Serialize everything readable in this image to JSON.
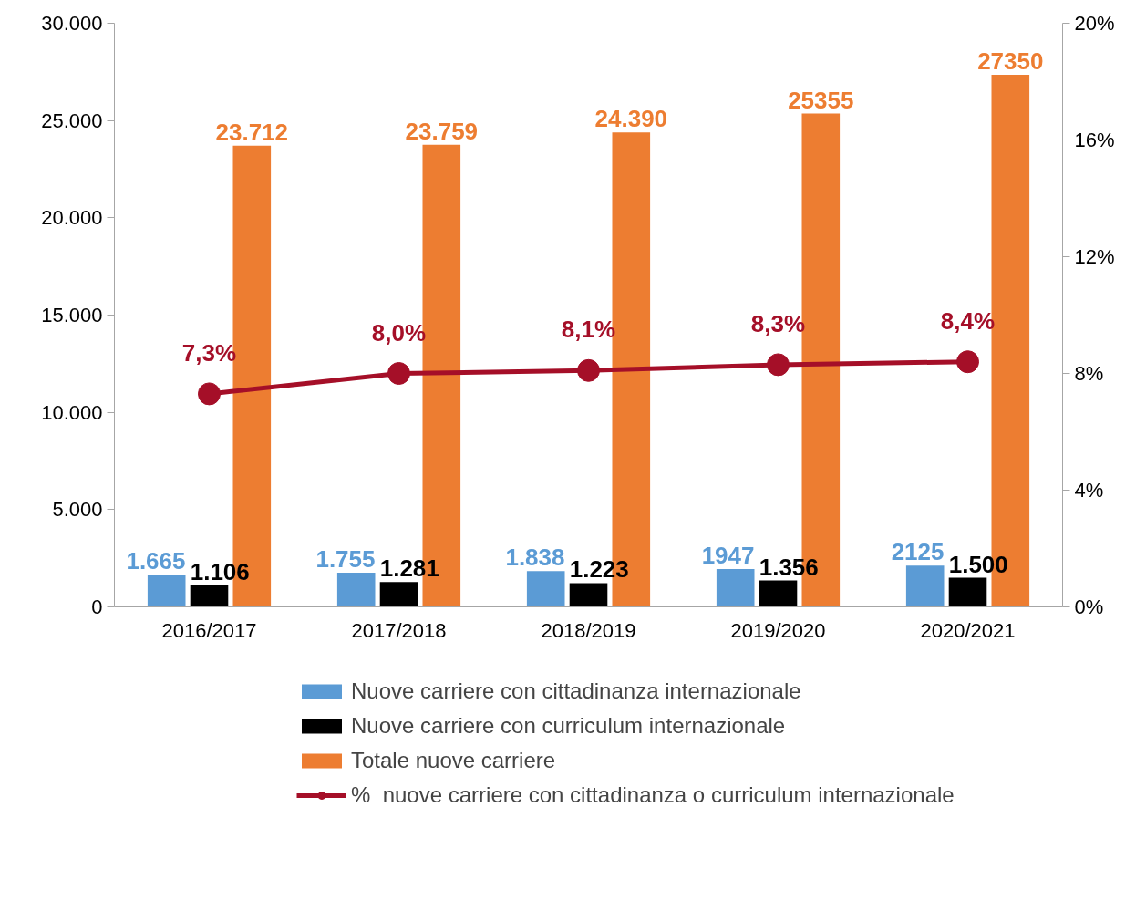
{
  "chart_data": {
    "type": "bar",
    "categories": [
      "2016/2017",
      "2017/2018",
      "2018/2019",
      "2019/2020",
      "2020/2021"
    ],
    "series": [
      {
        "name": "Nuove carriere con cittadinanza internazionale",
        "color": "#5b9bd5",
        "values": [
          1665,
          1755,
          1838,
          1947,
          2125
        ],
        "value_labels": [
          "1.665",
          "1.755",
          "1.838",
          "1947",
          "2125"
        ]
      },
      {
        "name": "Nuove carriere con curriculum internazionale",
        "color": "#000000",
        "values": [
          1106,
          1281,
          1223,
          1356,
          1500
        ],
        "value_labels": [
          "1.106",
          "1.281",
          "1.223",
          "1.356",
          "1.500"
        ]
      },
      {
        "name": "Totale nuove carriere",
        "color": "#ed7d31",
        "values": [
          23712,
          23759,
          24390,
          25355,
          27350
        ],
        "value_labels": [
          "23.712",
          "23.759",
          "24.390",
          "25355",
          "27350"
        ]
      },
      {
        "name": "%  nuove carriere con cittadinanza o curriculum internazionale",
        "type": "line",
        "axis": "y2",
        "marker": "circle",
        "color": "#a50f28",
        "values": [
          7.3,
          8.0,
          8.1,
          8.3,
          8.4
        ],
        "value_labels": [
          "7,3%",
          "8,0%",
          "8,1%",
          "8,3%",
          "8,4%"
        ]
      }
    ],
    "ylim": [
      0,
      30000
    ],
    "yticks": [
      {
        "value": 0,
        "label": "0"
      },
      {
        "value": 5000,
        "label": "5.000"
      },
      {
        "value": 10000,
        "label": "10.000"
      },
      {
        "value": 15000,
        "label": "15.000"
      },
      {
        "value": 20000,
        "label": "20.000"
      },
      {
        "value": 25000,
        "label": "25.000"
      },
      {
        "value": 30000,
        "label": "30.000"
      }
    ],
    "y2lim": [
      0,
      20
    ],
    "y2ticks": [
      {
        "value": 0,
        "label": "0%"
      },
      {
        "value": 4,
        "label": "4%"
      },
      {
        "value": 8,
        "label": "8%"
      },
      {
        "value": 12,
        "label": "12%"
      },
      {
        "value": 16,
        "label": "16%"
      },
      {
        "value": 20,
        "label": "20%"
      }
    ],
    "grid": false,
    "legend": "bottom"
  }
}
